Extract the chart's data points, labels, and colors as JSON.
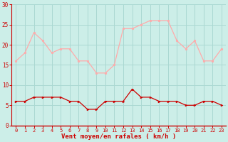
{
  "hours": [
    0,
    1,
    2,
    3,
    4,
    5,
    6,
    7,
    8,
    9,
    10,
    11,
    12,
    13,
    14,
    15,
    16,
    17,
    18,
    19,
    20,
    21,
    22,
    23
  ],
  "rafales": [
    16,
    18,
    23,
    21,
    18,
    19,
    19,
    16,
    16,
    13,
    13,
    15,
    24,
    24,
    25,
    26,
    26,
    26,
    21,
    19,
    21,
    16,
    16,
    19
  ],
  "moyen": [
    6,
    6,
    7,
    7,
    7,
    7,
    6,
    6,
    4,
    4,
    6,
    6,
    6,
    9,
    7,
    7,
    6,
    6,
    6,
    5,
    5,
    6,
    6,
    5
  ],
  "bg_color": "#cceee8",
  "grid_color": "#aad8d2",
  "line_rafales_color": "#ffaaaa",
  "line_moyen_color": "#cc0000",
  "xlabel": "Vent moyen/en rafales ( km/h )",
  "xlabel_color": "#cc0000",
  "tick_color": "#cc0000",
  "yticks": [
    0,
    5,
    10,
    15,
    20,
    25,
    30
  ],
  "ylim": [
    0,
    30
  ],
  "xlim_left": -0.5,
  "xlim_right": 23.5
}
